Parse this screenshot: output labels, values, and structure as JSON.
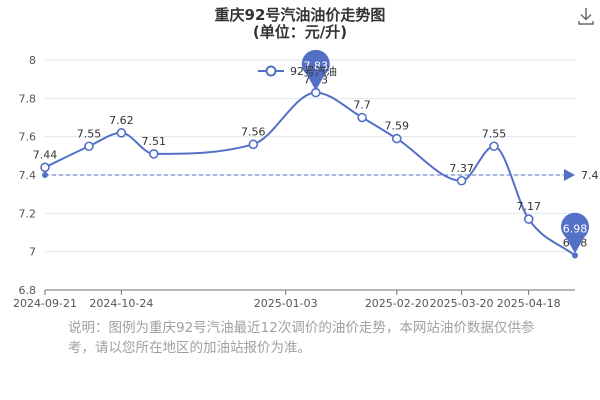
{
  "title_line1": "重庆92号汽油油价走势图",
  "title_line2": "(单位：元/升)",
  "download_icon": "download-icon",
  "note": "说明：图例为重庆92号汽油最近12次调价的油价走势，本网站油价数据仅供参考，请以您所在地区的加油站报价为准。",
  "colors": {
    "line": "#5470c6",
    "point_fill": "#ffffff",
    "grid": "#e0e6f1",
    "avg_line": "#5470c6"
  },
  "chart_data": {
    "type": "line",
    "title": "重庆92号汽油油价走势图",
    "subtitle": "(单位：元/升)",
    "ylim": [
      6.8,
      8
    ],
    "yticks": [
      "6.8",
      "7",
      "7.2",
      "7.4",
      "7.6",
      "7.8",
      "8"
    ],
    "xlim": [
      "2024-09-21",
      "2025-05-08"
    ],
    "xticks": [
      "2024-09-21",
      "2024-10-24",
      "2025-01-03",
      "2025-02-20",
      "2025-03-20",
      "2025-04-18"
    ],
    "grid": true,
    "legend": "top",
    "smooth": true,
    "series": [
      {
        "name": "92号汽油",
        "x": [
          "2024-09-21",
          "2024-10-10",
          "2024-10-24",
          "2024-11-07",
          "2024-12-20",
          "2025-01-16",
          "2025-02-05",
          "2025-02-20",
          "2025-03-20",
          "2025-04-03",
          "2025-04-18",
          "2025-05-08"
        ],
        "values": [
          7.44,
          7.55,
          7.62,
          7.51,
          7.56,
          7.83,
          7.7,
          7.59,
          7.37,
          7.55,
          7.17,
          6.98
        ]
      }
    ],
    "average": 7.4,
    "average_label": "7.4",
    "max_marker": "7.83",
    "min_marker": "6.98"
  }
}
